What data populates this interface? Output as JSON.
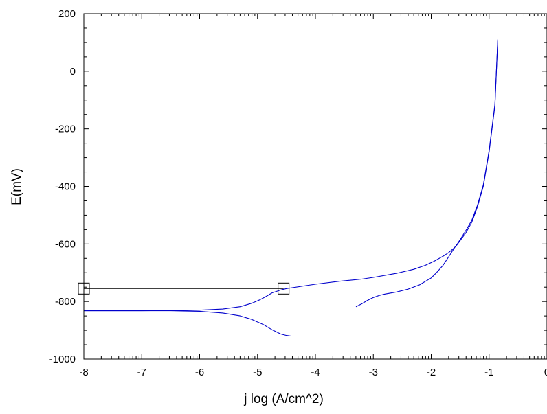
{
  "chart_data": {
    "type": "line",
    "title": "",
    "xlabel": "j log (A/cm^2)",
    "ylabel": "E(mV)",
    "xlim": [
      -8,
      0
    ],
    "ylim": [
      -1000,
      200
    ],
    "x_major_ticks": [
      -8,
      -7,
      -6,
      -5,
      -4,
      -3,
      -2,
      -1,
      0
    ],
    "x_tick_labels": [
      "-8",
      "-7",
      "-6",
      "-5",
      "-4",
      "-3",
      "-2",
      "-1",
      "0"
    ],
    "y_major_ticks": [
      200,
      0,
      -200,
      -400,
      -600,
      -800,
      -1000
    ],
    "y_tick_labels": [
      "200",
      "0",
      "-200",
      "-400",
      "-600",
      "-800",
      "-1000"
    ],
    "grid": false,
    "legend": "none",
    "line_color": "#0000cc",
    "series": [
      {
        "x": [
          -8.0,
          -7.0,
          -6.5,
          -6.0,
          -5.6,
          -5.3,
          -5.1,
          -4.9,
          -4.75,
          -4.6,
          -4.5,
          -4.42
        ],
        "y": [
          -832,
          -832,
          -832,
          -834,
          -840,
          -850,
          -862,
          -880,
          -898,
          -913,
          -918,
          -920
        ]
      },
      {
        "x": [
          -8.0,
          -7.0,
          -6.5,
          -6.0,
          -5.6,
          -5.3,
          -5.1,
          -4.95,
          -4.85,
          -4.75,
          -4.6,
          -4.5,
          -4.2,
          -4.0,
          -3.6,
          -3.2,
          -3.0,
          -2.6,
          -2.3,
          -2.1,
          -1.95,
          -1.8,
          -1.7,
          -1.6,
          -1.55,
          -1.4,
          -1.3,
          -1.2,
          -1.1,
          -1.0,
          -0.9,
          -0.85
        ],
        "y": [
          -832,
          -832,
          -831,
          -830,
          -826,
          -818,
          -806,
          -793,
          -782,
          -770,
          -760,
          -755,
          -746,
          -740,
          -730,
          -722,
          -716,
          -702,
          -688,
          -674,
          -660,
          -643,
          -630,
          -613,
          -602,
          -561,
          -525,
          -470,
          -400,
          -280,
          -120,
          110
        ]
      },
      {
        "x": [
          -3.3,
          -3.2,
          -3.1,
          -3.0,
          -2.9,
          -2.8,
          -2.6,
          -2.4,
          -2.2,
          -2.0,
          -1.9,
          -1.8,
          -1.7,
          -1.6,
          -1.55,
          -1.5,
          -1.4,
          -1.3,
          -1.2,
          -1.1,
          -1.0,
          -0.9,
          -0.85
        ],
        "y": [
          -818,
          -808,
          -796,
          -786,
          -779,
          -774,
          -767,
          -757,
          -742,
          -718,
          -698,
          -675,
          -645,
          -614,
          -600,
          -585,
          -553,
          -518,
          -465,
          -395,
          -275,
          -115,
          110
        ]
      }
    ],
    "annotations": {
      "horizontal_line": {
        "y": -755,
        "x_start": -8.0,
        "x_end": -4.55,
        "color": "#000000"
      },
      "markers": [
        {
          "x": -8.0,
          "y": -755,
          "shape": "square"
        },
        {
          "x": -4.55,
          "y": -755,
          "shape": "square"
        }
      ]
    }
  }
}
